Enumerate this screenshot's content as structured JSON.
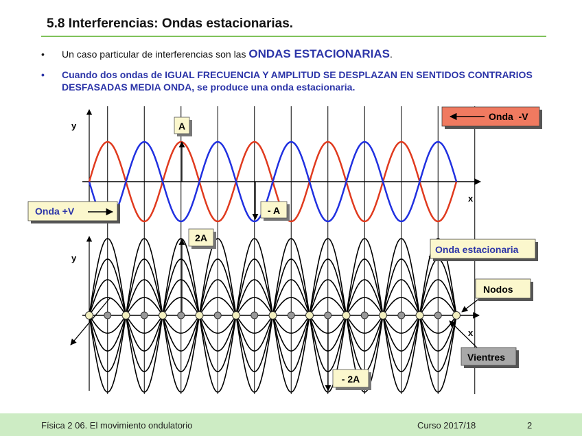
{
  "slide": {
    "title": "5.8 Interferencias: Ondas estacionarias.",
    "bullet1": {
      "prefix": "Un caso particular de interferencias son las ",
      "emphasis": "ONDAS ESTACIONARIAS",
      "suffix": "."
    },
    "bullet2": "Cuando dos ondas de IGUAL FRECUENCIA Y AMPLITUD SE DESPLAZAN EN SENTIDOS CONTRARIOS DESFASADAS MEDIA ONDA, se produce una onda estacionaria."
  },
  "diagram": {
    "labels": {
      "y_top": "y",
      "x_top": "x",
      "y_bottom": "y",
      "x_bottom": "x",
      "A": "A",
      "minus_A": "- A",
      "two_A": "2A",
      "minus_two_A": "- 2A",
      "onda_neg_v": "Onda  -V",
      "onda_pos_v": "Onda +V",
      "onda_estacionaria": "Onda estacionaria",
      "nodos": "Nodos",
      "vientres": "Vientres"
    },
    "colors": {
      "wave_pos": "#e03a1e",
      "wave_neg": "#2030e0",
      "callout_red_bg": "#f07a60",
      "callout_yellow_bg": "#fbf7cd",
      "callout_blue_text": "#2c35a8",
      "node_fill": "#f3f0c0",
      "antinode_fill": "#999999"
    }
  },
  "footer": {
    "left": "Física 2  06. El movimiento ondulatorio",
    "center": "Curso 2017/18",
    "page": "2"
  }
}
